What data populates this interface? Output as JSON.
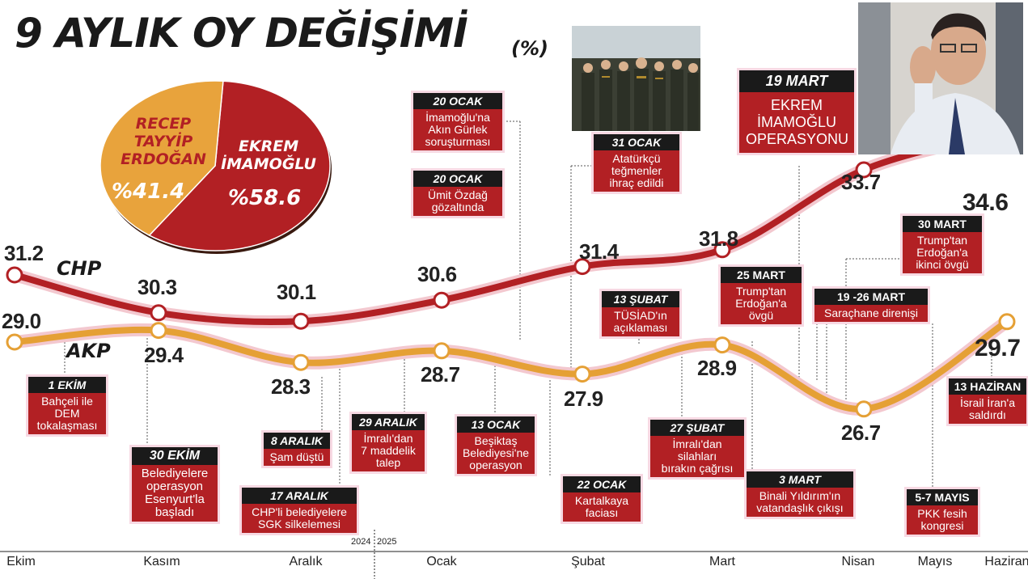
{
  "chart_data": {
    "type": "line",
    "title": "9 AYLIK OY DEĞİŞİMİ",
    "unit": "(%)",
    "categories": [
      "Ekim",
      "Kasım",
      "Aralık",
      "Ocak",
      "Şubat",
      "Mart",
      "Nisan",
      "Mayıs",
      "Haziran"
    ],
    "year_labels": [
      "2024",
      "2025"
    ],
    "series": [
      {
        "name": "CHP",
        "color": "#b22024",
        "points": [
          [
            "Ekim",
            31.2
          ],
          [
            "Kasım",
            30.3
          ],
          [
            "Aralık",
            30.1
          ],
          [
            "Ocak",
            30.6
          ],
          [
            "Şubat",
            31.4
          ],
          [
            "Mart",
            31.8
          ],
          [
            "Nisan",
            33.7
          ],
          [
            "Haziran",
            34.6
          ]
        ],
        "labels": [
          "31.2",
          "30.3",
          "30.1",
          "30.6",
          "31.4",
          "31.8",
          "33.7",
          "34.6"
        ]
      },
      {
        "name": "AKP",
        "color": "#e5a035",
        "points": [
          [
            "Ekim",
            29.0
          ],
          [
            "Kasım",
            29.4
          ],
          [
            "Aralık",
            28.3
          ],
          [
            "Ocak",
            28.7
          ],
          [
            "Şubat",
            27.9
          ],
          [
            "Mart",
            28.9
          ],
          [
            "Nisan",
            26.7
          ],
          [
            "Haziran",
            29.7
          ]
        ],
        "labels": [
          "29.0",
          "29.4",
          "28.3",
          "28.7",
          "27.9",
          "28.9",
          "26.7",
          "29.7"
        ]
      }
    ],
    "pie": {
      "slices": [
        {
          "name": "EKREM\nİMAMOĞLU",
          "value": 58.6,
          "label": "%58.6",
          "color": "#b22024"
        },
        {
          "name": "RECEP\nTAYYİP\nERDOĞAN",
          "value": 41.4,
          "label": "%41.4",
          "color": "#e8a33c"
        }
      ]
    },
    "events": [
      {
        "date": "1 EKİM",
        "text": "Bahçeli ile\nDEM\ntokalaşması"
      },
      {
        "date": "30 EKİM",
        "text": "Belediyelere\noperasyon\nEsenyurt'la\nbaşladı"
      },
      {
        "date": "8 ARALIK",
        "text": "Şam düştü"
      },
      {
        "date": "17 ARALIK",
        "text": "CHP'li belediyelere\nSGK silkelemesi"
      },
      {
        "date": "29 ARALIK",
        "text": "İmralı'dan\n7 maddelik\ntalep"
      },
      {
        "date": "13 OCAK",
        "text": "Beşiktaş\nBelediyesi'ne\noperasyon"
      },
      {
        "date": "20 OCAK",
        "text": "İmamoğlu'na\nAkın Gürlek\nsoruşturması"
      },
      {
        "date": "20 OCAK",
        "text": "Ümit Özdağ\ngözaltında"
      },
      {
        "date": "22 OCAK",
        "text": "Kartalkaya\nfaciası"
      },
      {
        "date": "31 OCAK",
        "text": "Atatürkçü\nteğmenler\nihraç edildi"
      },
      {
        "date": "13 ŞUBAT",
        "text": "TÜSİAD'ın\naçıklaması"
      },
      {
        "date": "27 ŞUBAT",
        "text": "İmralı'dan\nsilahları\nbırakın çağrısı"
      },
      {
        "date": "3 MART",
        "text": "Binali Yıldırım'ın\nvatandaşlık çıkışı"
      },
      {
        "date": "19 MART",
        "text": "EKREM\nİMAMOĞLU\nOPERASYONU"
      },
      {
        "date": "25 MART",
        "text": "Trump'tan\nErdoğan'a\növgü"
      },
      {
        "date": "19 -26 MART",
        "text": "Saraçhane direnişi"
      },
      {
        "date": "30 MART",
        "text": "Trump'tan\nErdoğan'a\nikinci övgü"
      },
      {
        "date": "5-7 MAYIS",
        "text": "PKK fesih\nkongresi"
      },
      {
        "date": "13 HAZİRAN",
        "text": "İsrail İran'a\nsaldırdı"
      }
    ]
  },
  "photos": [
    {
      "name": "soldiers-photo-icon"
    },
    {
      "name": "imamoglu-photo-icon"
    }
  ]
}
